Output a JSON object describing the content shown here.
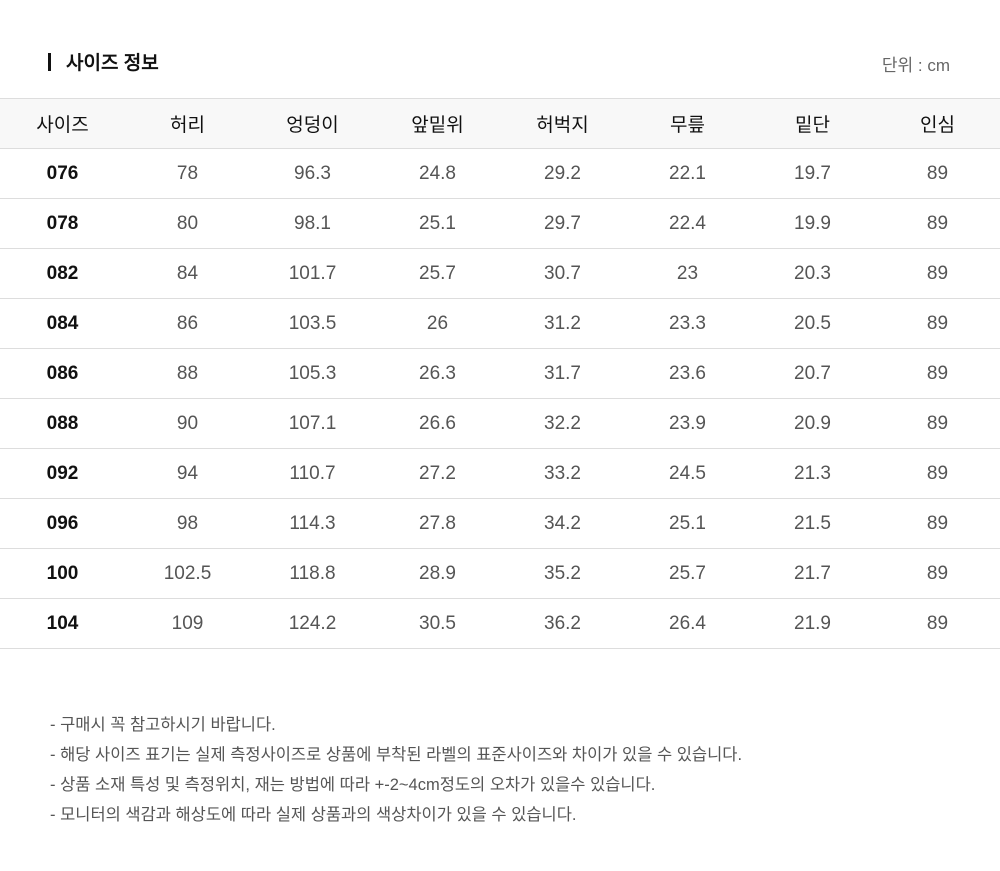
{
  "title": "사이즈 정보",
  "unit_label": "단위 : cm",
  "table": {
    "headers": [
      "사이즈",
      "허리",
      "엉덩이",
      "앞밑위",
      "허벅지",
      "무릎",
      "밑단",
      "인심"
    ],
    "rows": [
      [
        "076",
        "78",
        "96.3",
        "24.8",
        "29.2",
        "22.1",
        "19.7",
        "89"
      ],
      [
        "078",
        "80",
        "98.1",
        "25.1",
        "29.7",
        "22.4",
        "19.9",
        "89"
      ],
      [
        "082",
        "84",
        "101.7",
        "25.7",
        "30.7",
        "23",
        "20.3",
        "89"
      ],
      [
        "084",
        "86",
        "103.5",
        "26",
        "31.2",
        "23.3",
        "20.5",
        "89"
      ],
      [
        "086",
        "88",
        "105.3",
        "26.3",
        "31.7",
        "23.6",
        "20.7",
        "89"
      ],
      [
        "088",
        "90",
        "107.1",
        "26.6",
        "32.2",
        "23.9",
        "20.9",
        "89"
      ],
      [
        "092",
        "94",
        "110.7",
        "27.2",
        "33.2",
        "24.5",
        "21.3",
        "89"
      ],
      [
        "096",
        "98",
        "114.3",
        "27.8",
        "34.2",
        "25.1",
        "21.5",
        "89"
      ],
      [
        "100",
        "102.5",
        "118.8",
        "28.9",
        "35.2",
        "25.7",
        "21.7",
        "89"
      ],
      [
        "104",
        "109",
        "124.2",
        "30.5",
        "36.2",
        "26.4",
        "21.9",
        "89"
      ]
    ]
  },
  "notes": [
    "- 구매시 꼭 참고하시기 바랍니다.",
    "- 해당 사이즈 표기는 실제 측정사이즈로 상품에 부착된 라벨의 표준사이즈와 차이가 있을 수 있습니다.",
    "- 상품 소재 특성 및 측정위치, 재는 방법에 따라 +-2~4cm정도의 오차가 있을수 있습니다.",
    "- 모니터의 색감과 해상도에 따라 실제 상품과의 색상차이가 있을 수 있습니다."
  ]
}
